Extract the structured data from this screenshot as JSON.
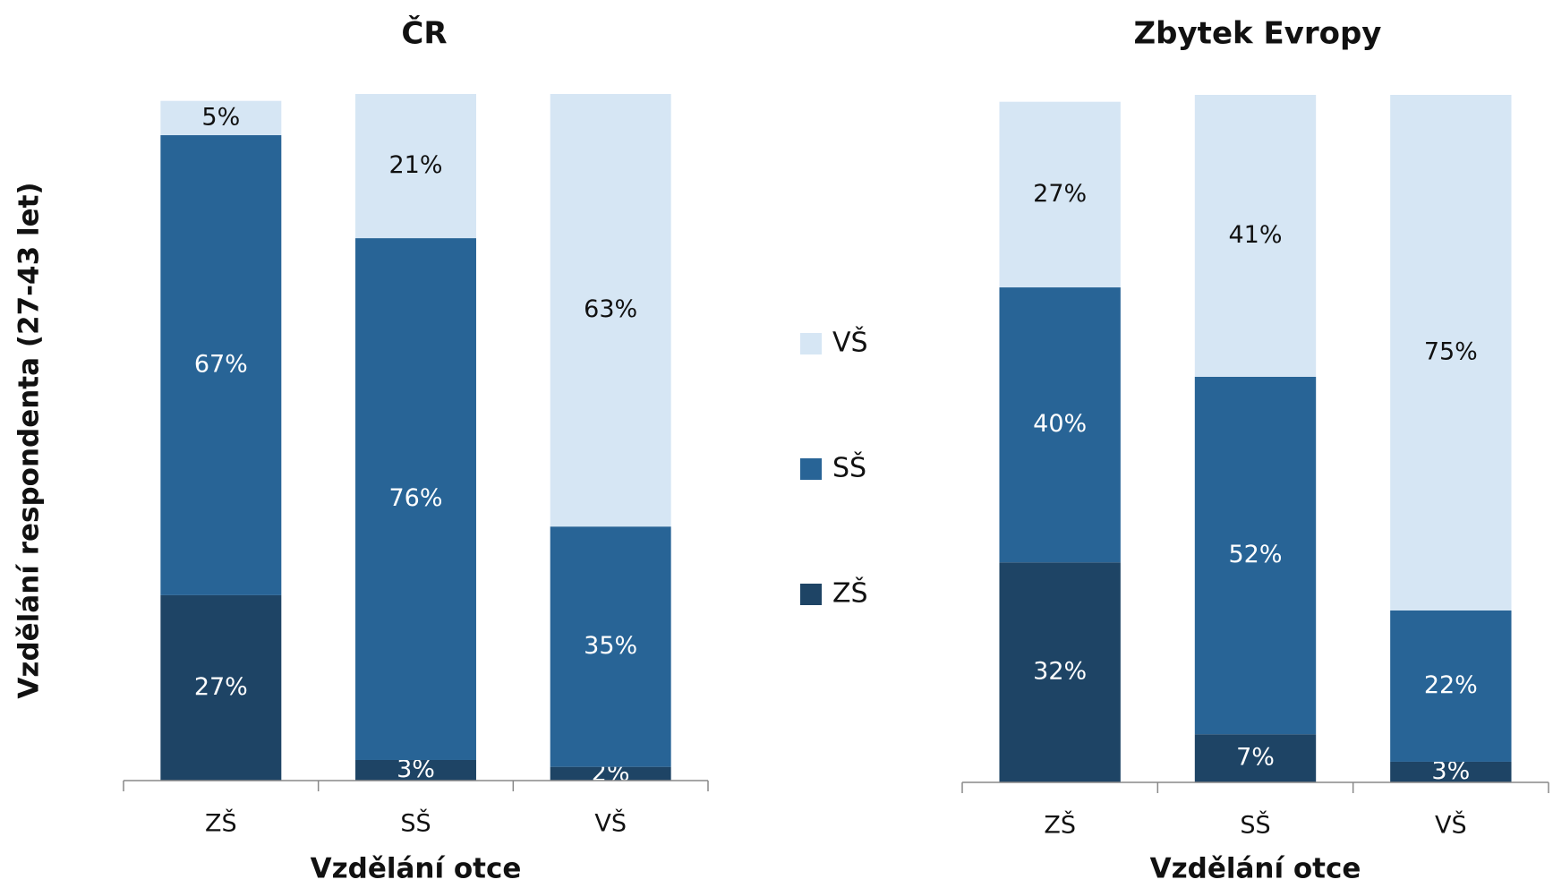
{
  "chart_data": [
    {
      "type": "bar",
      "stacked": true,
      "title": "ČR",
      "xlabel": "Vzdělání otce",
      "ylabel": "Vzdělání respondenta (27-43 let)",
      "categories": [
        "ZŠ",
        "SŠ",
        "VŠ"
      ],
      "ylim": [
        0,
        100
      ],
      "series": [
        {
          "name": "ZŠ",
          "color": "#1e4465",
          "values": [
            27,
            3,
            2
          ],
          "value_labels": [
            "27%",
            "3%",
            "2%"
          ]
        },
        {
          "name": "SŠ",
          "color": "#286496",
          "values": [
            67,
            76,
            35
          ],
          "value_labels": [
            "67%",
            "76%",
            "35%"
          ]
        },
        {
          "name": "VŠ",
          "color": "#d6e6f4",
          "values": [
            5,
            21,
            63
          ],
          "value_labels": [
            "5%",
            "21%",
            "63%"
          ]
        }
      ]
    },
    {
      "type": "bar",
      "stacked": true,
      "title": "Zbytek Evropy",
      "xlabel": "Vzdělání otce",
      "categories": [
        "ZŠ",
        "SŠ",
        "VŠ"
      ],
      "ylim": [
        0,
        100
      ],
      "series": [
        {
          "name": "ZŠ",
          "color": "#1e4465",
          "values": [
            32,
            7,
            3
          ],
          "value_labels": [
            "32%",
            "7%",
            "3%"
          ]
        },
        {
          "name": "SŠ",
          "color": "#286496",
          "values": [
            40,
            52,
            22
          ],
          "value_labels": [
            "40%",
            "52%",
            "22%"
          ]
        },
        {
          "name": "VŠ",
          "color": "#d6e6f4",
          "values": [
            27,
            41,
            75
          ],
          "value_labels": [
            "27%",
            "41%",
            "75%"
          ]
        }
      ]
    }
  ]
}
